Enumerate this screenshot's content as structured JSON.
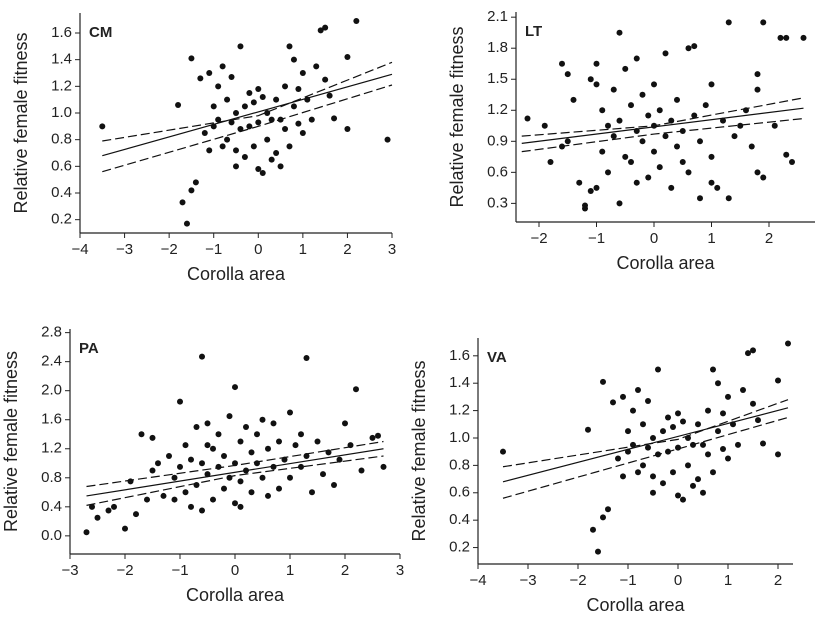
{
  "chart_data": [
    {
      "type": "scatter",
      "panel_label": "CM",
      "xlabel": "Corolla area",
      "ylabel": "Relative female fitness",
      "color": "#111111",
      "xlim": [
        -4,
        3
      ],
      "ylim": [
        0.1,
        1.75
      ],
      "xticks": [
        {
          "value": -4,
          "label": "−4"
        },
        {
          "value": -3,
          "label": "−3"
        },
        {
          "value": -2,
          "label": "−2"
        },
        {
          "value": -1,
          "label": "−1"
        },
        0,
        1,
        2,
        3
      ],
      "yticks": [
        0.2,
        0.4,
        0.6,
        0.8,
        {
          "value": 1,
          "label": "1.0"
        },
        1.2,
        1.4,
        1.6
      ],
      "x": [
        -3.5,
        -1.8,
        -1.7,
        -1.6,
        -1.5,
        -1.4,
        -1.5,
        -1.3,
        -1.2,
        -1.1,
        -1.0,
        -1.0,
        -0.9,
        -0.9,
        -0.8,
        -0.8,
        -0.7,
        -0.7,
        -0.6,
        -0.6,
        -0.5,
        -0.5,
        -0.4,
        -0.4,
        -0.3,
        -0.3,
        -0.2,
        -0.2,
        -0.1,
        -0.1,
        0.0,
        0.0,
        0.1,
        0.1,
        0.2,
        0.2,
        0.3,
        0.3,
        0.4,
        0.4,
        0.5,
        0.6,
        0.6,
        0.7,
        0.7,
        0.8,
        0.8,
        0.9,
        0.9,
        1.0,
        1.0,
        1.1,
        1.2,
        1.3,
        1.4,
        1.5,
        1.5,
        1.6,
        1.7,
        2.0,
        2.0,
        2.2,
        2.9,
        -0.5,
        0.5,
        -1.1,
        0.0
      ],
      "y": [
        0.9,
        1.06,
        0.33,
        0.17,
        0.42,
        0.48,
        1.41,
        1.26,
        0.85,
        1.3,
        1.05,
        0.9,
        1.2,
        0.95,
        0.75,
        1.35,
        1.1,
        0.8,
        0.93,
        1.27,
        1.0,
        0.72,
        1.5,
        0.88,
        1.05,
        0.67,
        0.9,
        1.15,
        1.08,
        0.75,
        1.18,
        0.93,
        1.12,
        0.55,
        1.0,
        0.8,
        0.95,
        0.65,
        1.1,
        0.7,
        0.95,
        0.88,
        1.2,
        1.5,
        0.75,
        1.05,
        1.4,
        0.92,
        1.18,
        1.3,
        0.85,
        1.1,
        0.95,
        1.35,
        1.62,
        1.64,
        1.25,
        1.13,
        0.96,
        1.42,
        0.88,
        1.69,
        0.8,
        0.6,
        0.6,
        0.72,
        0.58
      ],
      "lines": [
        {
          "style": "solid",
          "x": [
            -3.5,
            3
          ],
          "y": [
            0.68,
            1.29
          ]
        },
        {
          "style": "dashed",
          "x": [
            -3.5,
            0,
            3
          ],
          "y": [
            0.79,
            0.98,
            1.38
          ]
        },
        {
          "style": "dashed",
          "x": [
            -3.5,
            0,
            3
          ],
          "y": [
            0.56,
            0.9,
            1.21
          ]
        }
      ]
    },
    {
      "type": "scatter",
      "panel_label": "LT",
      "xlabel": "Corolla area",
      "ylabel": "Relative female fitness",
      "color": "#111111",
      "xlim": [
        -2.4,
        2.8
      ],
      "ylim": [
        0.12,
        2.15
      ],
      "xticks": [
        {
          "value": -2,
          "label": "−2"
        },
        {
          "value": -1,
          "label": "−1"
        },
        0,
        1,
        2
      ],
      "yticks": [
        0.3,
        0.6,
        0.9,
        1.2,
        1.5,
        1.8,
        2.1
      ],
      "x": [
        -2.2,
        -1.6,
        -1.5,
        -1.5,
        -1.6,
        -1.4,
        -1.3,
        -1.2,
        -1.2,
        -1.1,
        -1.0,
        -1.0,
        -1.1,
        -0.9,
        -0.9,
        -0.8,
        -0.8,
        -0.7,
        -0.7,
        -0.6,
        -0.6,
        -0.5,
        -0.5,
        -0.4,
        -0.4,
        -0.3,
        -0.3,
        -0.2,
        -0.2,
        -0.1,
        -0.1,
        0.0,
        0.0,
        0.0,
        0.1,
        0.1,
        0.2,
        0.2,
        0.3,
        0.3,
        0.4,
        0.4,
        0.5,
        0.5,
        0.6,
        0.7,
        0.7,
        0.8,
        0.8,
        0.9,
        1.0,
        1.0,
        1.0,
        1.1,
        1.2,
        1.3,
        1.3,
        1.4,
        1.5,
        1.6,
        1.8,
        1.8,
        1.9,
        1.9,
        1.8,
        2.1,
        2.2,
        2.3,
        2.3,
        2.4,
        2.6,
        -1.9,
        -1.8,
        -1.0,
        -0.3,
        0.6,
        1.7,
        -0.6
      ],
      "y": [
        1.12,
        1.65,
        1.55,
        0.9,
        0.85,
        1.3,
        0.5,
        0.28,
        0.25,
        1.5,
        1.45,
        0.45,
        0.42,
        1.2,
        0.8,
        1.05,
        0.6,
        1.4,
        0.95,
        1.1,
        0.3,
        1.6,
        0.75,
        1.25,
        0.7,
        1.7,
        1.0,
        0.9,
        1.35,
        1.15,
        0.55,
        1.05,
        0.8,
        1.45,
        1.2,
        0.65,
        0.95,
        1.75,
        1.1,
        0.45,
        1.3,
        0.85,
        1.0,
        0.7,
        1.8,
        1.82,
        1.15,
        0.9,
        0.35,
        1.25,
        0.75,
        0.5,
        1.45,
        0.45,
        1.1,
        2.05,
        0.35,
        0.95,
        1.05,
        1.2,
        1.55,
        1.4,
        2.05,
        0.55,
        0.6,
        1.05,
        1.9,
        1.9,
        0.77,
        0.7,
        1.9,
        1.05,
        0.7,
        1.65,
        0.5,
        0.6,
        0.85,
        1.95
      ],
      "lines": [
        {
          "style": "solid",
          "x": [
            -2.3,
            2.6
          ],
          "y": [
            0.88,
            1.22
          ]
        },
        {
          "style": "dashed",
          "x": [
            -2.3,
            0,
            2.6
          ],
          "y": [
            0.95,
            1.05,
            1.32
          ]
        },
        {
          "style": "dashed",
          "x": [
            -2.3,
            0,
            2.6
          ],
          "y": [
            0.8,
            0.97,
            1.12
          ]
        }
      ]
    },
    {
      "type": "scatter",
      "panel_label": "PA",
      "xlabel": "Corolla area",
      "ylabel": "Relative female fitness",
      "color": "#111111",
      "xlim": [
        -3,
        3
      ],
      "ylim": [
        -0.25,
        2.85
      ],
      "xticks": [
        {
          "value": -3,
          "label": "−3"
        },
        {
          "value": -2,
          "label": "−2"
        },
        {
          "value": -1,
          "label": "−1"
        },
        0,
        1,
        2,
        3
      ],
      "yticks": [
        {
          "value": 0,
          "label": "0.0"
        },
        0.4,
        0.8,
        1.2,
        1.6,
        {
          "value": 2,
          "label": "2.0"
        },
        2.4,
        2.8
      ],
      "x": [
        -2.7,
        -2.6,
        -2.5,
        -2.3,
        -2.0,
        -1.9,
        -1.8,
        -1.7,
        -1.6,
        -1.5,
        -1.5,
        -1.3,
        -1.2,
        -1.1,
        -1.0,
        -1.0,
        -0.9,
        -0.9,
        -0.8,
        -0.8,
        -0.7,
        -0.7,
        -0.6,
        -0.6,
        -0.6,
        -0.5,
        -0.5,
        -0.4,
        -0.4,
        -0.3,
        -0.3,
        -0.2,
        -0.2,
        -0.1,
        -0.1,
        0.0,
        0.0,
        0.0,
        0.1,
        0.1,
        0.2,
        0.2,
        0.3,
        0.3,
        0.4,
        0.4,
        0.5,
        0.5,
        0.6,
        0.6,
        0.7,
        0.8,
        0.8,
        0.9,
        1.0,
        1.0,
        1.1,
        1.2,
        1.3,
        1.3,
        1.4,
        1.5,
        1.6,
        1.7,
        1.8,
        1.9,
        2.1,
        2.2,
        2.3,
        2.5,
        2.6,
        2.7,
        -2.2,
        -1.4,
        0.7,
        -0.5,
        0.1,
        1.2,
        -1.1,
        2.0
      ],
      "y": [
        0.05,
        0.4,
        0.25,
        0.35,
        0.1,
        0.75,
        0.3,
        1.4,
        0.5,
        1.35,
        0.9,
        0.55,
        1.1,
        0.8,
        1.85,
        0.95,
        0.6,
        1.25,
        0.4,
        1.05,
        1.5,
        0.7,
        2.47,
        0.35,
        1.0,
        1.55,
        0.85,
        1.2,
        0.5,
        0.95,
        1.4,
        0.65,
        1.1,
        1.65,
        0.8,
        2.05,
        1.0,
        0.45,
        1.3,
        0.75,
        0.9,
        1.5,
        1.15,
        0.6,
        1.0,
        1.4,
        0.8,
        1.6,
        1.2,
        0.55,
        0.95,
        1.3,
        0.65,
        1.05,
        1.7,
        0.8,
        1.25,
        0.95,
        2.45,
        1.1,
        0.6,
        1.3,
        0.85,
        1.15,
        0.7,
        1.05,
        1.25,
        2.02,
        0.9,
        1.35,
        1.38,
        0.95,
        0.4,
        1.0,
        1.55,
        1.25,
        0.4,
        1.4,
        0.5,
        1.55
      ],
      "lines": [
        {
          "style": "solid",
          "x": [
            -2.7,
            2.7
          ],
          "y": [
            0.55,
            1.2
          ]
        },
        {
          "style": "dashed",
          "x": [
            -2.7,
            0,
            2.7
          ],
          "y": [
            0.68,
            0.97,
            1.3
          ]
        },
        {
          "style": "dashed",
          "x": [
            -2.7,
            0,
            2.7
          ],
          "y": [
            0.42,
            0.83,
            1.1
          ]
        }
      ]
    },
    {
      "type": "scatter",
      "panel_label": "VA",
      "xlabel": "Corolla area",
      "ylabel": "Relative female fitness",
      "color": "#111111",
      "xlim": [
        -4,
        2.3
      ],
      "ylim": [
        0.08,
        1.73
      ],
      "xticks": [
        {
          "value": -4,
          "label": "−4"
        },
        {
          "value": -3,
          "label": "−3"
        },
        {
          "value": -2,
          "label": "−2"
        },
        {
          "value": -1,
          "label": "−1"
        },
        0,
        1,
        2
      ],
      "yticks": [
        0.2,
        0.4,
        0.6,
        0.8,
        {
          "value": 1,
          "label": "1.0"
        },
        1.2,
        1.4,
        1.6
      ],
      "x": [
        -3.5,
        -1.8,
        -1.7,
        -1.6,
        -1.5,
        -1.4,
        -1.5,
        -1.3,
        -1.2,
        -1.1,
        -1.0,
        -1.0,
        -0.9,
        -0.9,
        -0.8,
        -0.8,
        -0.7,
        -0.7,
        -0.6,
        -0.6,
        -0.5,
        -0.5,
        -0.4,
        -0.4,
        -0.3,
        -0.3,
        -0.2,
        -0.2,
        -0.1,
        -0.1,
        0.0,
        0.0,
        0.1,
        0.1,
        0.2,
        0.2,
        0.3,
        0.3,
        0.4,
        0.4,
        0.5,
        0.6,
        0.6,
        0.7,
        0.7,
        0.8,
        0.8,
        0.9,
        0.9,
        1.0,
        1.0,
        1.1,
        1.2,
        1.3,
        1.4,
        1.5,
        1.5,
        1.6,
        1.7,
        2.0,
        2.0,
        2.2,
        -0.5,
        0.5,
        -1.1,
        0.0
      ],
      "y": [
        0.9,
        1.06,
        0.33,
        0.17,
        0.42,
        0.48,
        1.41,
        1.26,
        0.85,
        1.3,
        1.05,
        0.9,
        1.2,
        0.95,
        0.75,
        1.35,
        1.1,
        0.8,
        0.93,
        1.27,
        1.0,
        0.72,
        1.5,
        0.88,
        1.05,
        0.67,
        0.9,
        1.15,
        1.08,
        0.75,
        1.18,
        0.93,
        1.12,
        0.55,
        1.0,
        0.8,
        0.95,
        0.65,
        1.1,
        0.7,
        0.95,
        0.88,
        1.2,
        1.5,
        0.75,
        1.05,
        1.4,
        0.92,
        1.18,
        1.3,
        0.85,
        1.1,
        0.95,
        1.35,
        1.62,
        1.64,
        1.25,
        1.13,
        0.96,
        1.42,
        0.88,
        1.69,
        0.6,
        0.6,
        0.72,
        0.58
      ],
      "lines": [
        {
          "style": "solid",
          "x": [
            -3.5,
            2.2
          ],
          "y": [
            0.68,
            1.22
          ]
        },
        {
          "style": "dashed",
          "x": [
            -3.5,
            0,
            2.2
          ],
          "y": [
            0.79,
            0.99,
            1.28
          ]
        },
        {
          "style": "dashed",
          "x": [
            -3.5,
            0,
            2.2
          ],
          "y": [
            0.56,
            0.92,
            1.15
          ]
        }
      ]
    }
  ]
}
